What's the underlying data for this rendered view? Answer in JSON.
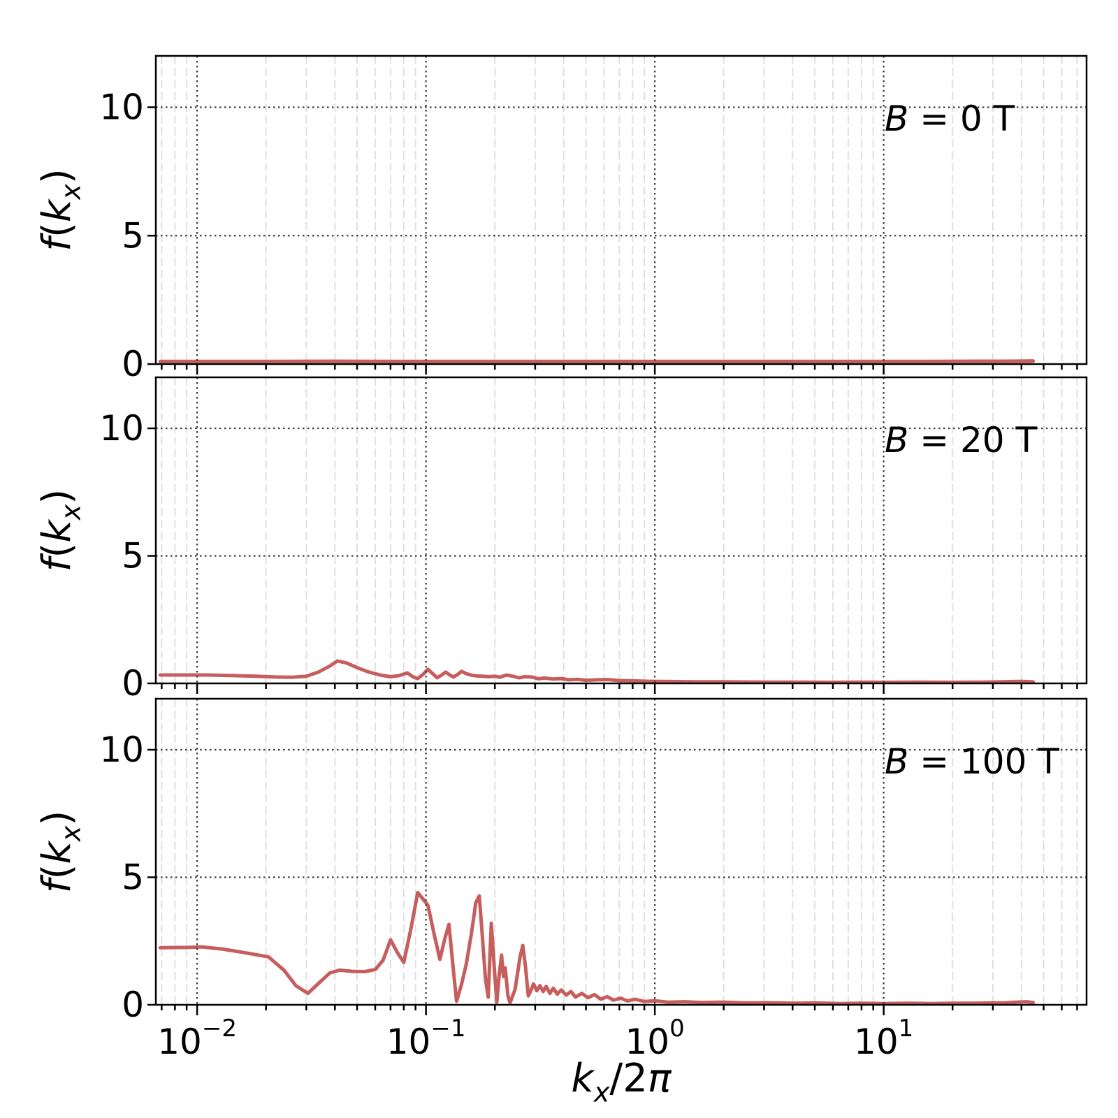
{
  "figure": {
    "background": "#ffffff",
    "line_color": "#c75e5e",
    "grid_major_color": "#3a3a3a",
    "grid_minor_color": "#e0e0e0",
    "axis_color": "#000000",
    "line_width": 5
  },
  "axes": {
    "x_scale": "log",
    "xlim": [
      0.0066,
      77
    ],
    "ylim": [
      0,
      12
    ],
    "xlabel": "k_x/2pi",
    "ylabel": "f(k_x)",
    "xlabel_runs": [
      {
        "t": "k",
        "i": 1
      },
      {
        "t": "x",
        "i": 1,
        "sub": 1
      },
      {
        "t": "/2"
      },
      {
        "t": "π",
        "i": 1
      }
    ],
    "ylabel_runs": [
      {
        "t": "f",
        "i": 1
      },
      {
        "t": "("
      },
      {
        "t": "k",
        "i": 1
      },
      {
        "t": "x",
        "i": 1,
        "sub": 1
      },
      {
        "t": ")"
      }
    ],
    "x_major_ticks": [
      0.01,
      0.1,
      1,
      10
    ],
    "x_tick_labels": [
      {
        "x": 0.01,
        "runs": [
          {
            "t": "10"
          },
          {
            "t": "−2",
            "sup": 1
          }
        ]
      },
      {
        "x": 0.1,
        "runs": [
          {
            "t": "10"
          },
          {
            "t": "−1",
            "sup": 1
          }
        ]
      },
      {
        "x": 1,
        "runs": [
          {
            "t": "10"
          },
          {
            "t": "0",
            "sup": 1
          }
        ]
      },
      {
        "x": 10,
        "runs": [
          {
            "t": "10"
          },
          {
            "t": "1",
            "sup": 1
          }
        ]
      }
    ],
    "y_ticks": [
      {
        "v": 0,
        "label": "0"
      },
      {
        "v": 5,
        "label": "5"
      },
      {
        "v": 10,
        "label": "10"
      }
    ],
    "grid": {
      "major_style": "dotted",
      "minor_style": "dashed-light",
      "y_major_gridlines": [
        5,
        10
      ]
    }
  },
  "chart_data": [
    {
      "type": "line",
      "annotation": "B = 0 T",
      "annotation_runs": [
        {
          "t": "B",
          "i": 1
        },
        {
          "t": " = 0 T"
        }
      ],
      "x": [
        0.0069,
        0.01,
        0.02,
        0.04,
        0.08,
        0.15,
        0.3,
        0.6,
        1,
        2,
        4,
        8,
        15,
        25,
        35,
        45
      ],
      "y": [
        0.1,
        0.1,
        0.1,
        0.11,
        0.1,
        0.1,
        0.1,
        0.1,
        0.1,
        0.1,
        0.1,
        0.1,
        0.1,
        0.11,
        0.11,
        0.12
      ]
    },
    {
      "type": "line",
      "annotation": "B = 20 T",
      "annotation_runs": [
        {
          "t": "B",
          "i": 1
        },
        {
          "t": " = 20 T"
        }
      ],
      "x": [
        0.0069,
        0.009,
        0.011,
        0.014,
        0.018,
        0.022,
        0.026,
        0.03,
        0.034,
        0.038,
        0.041,
        0.045,
        0.05,
        0.056,
        0.063,
        0.07,
        0.076,
        0.083,
        0.088,
        0.092,
        0.097,
        0.102,
        0.107,
        0.112,
        0.117,
        0.122,
        0.127,
        0.132,
        0.138,
        0.143,
        0.15,
        0.158,
        0.167,
        0.177,
        0.188,
        0.2,
        0.21,
        0.225,
        0.24,
        0.255,
        0.27,
        0.29,
        0.31,
        0.33,
        0.36,
        0.39,
        0.42,
        0.46,
        0.5,
        0.56,
        0.62,
        0.7,
        0.8,
        0.95,
        1.2,
        1.5,
        2,
        3,
        4,
        6,
        8,
        10,
        14,
        20,
        27,
        33,
        40,
        45
      ],
      "y": [
        0.33,
        0.33,
        0.33,
        0.31,
        0.28,
        0.25,
        0.24,
        0.28,
        0.45,
        0.68,
        0.88,
        0.8,
        0.62,
        0.45,
        0.33,
        0.26,
        0.3,
        0.41,
        0.25,
        0.19,
        0.35,
        0.55,
        0.38,
        0.22,
        0.33,
        0.44,
        0.33,
        0.25,
        0.36,
        0.47,
        0.38,
        0.32,
        0.29,
        0.28,
        0.26,
        0.28,
        0.24,
        0.33,
        0.28,
        0.22,
        0.26,
        0.25,
        0.18,
        0.21,
        0.17,
        0.19,
        0.14,
        0.16,
        0.12,
        0.14,
        0.15,
        0.11,
        0.1,
        0.08,
        0.07,
        0.06,
        0.06,
        0.05,
        0.05,
        0.04,
        0.05,
        0.04,
        0.05,
        0.04,
        0.05,
        0.06,
        0.08,
        0.06
      ]
    },
    {
      "type": "line",
      "annotation": "B = 100 T",
      "annotation_runs": [
        {
          "t": "B",
          "i": 1
        },
        {
          "t": " = 100 T"
        }
      ],
      "x": [
        0.0069,
        0.009,
        0.0105,
        0.013,
        0.016,
        0.0205,
        0.024,
        0.027,
        0.0305,
        0.034,
        0.038,
        0.042,
        0.048,
        0.054,
        0.06,
        0.065,
        0.07,
        0.075,
        0.08,
        0.086,
        0.092,
        0.097,
        0.102,
        0.109,
        0.115,
        0.121,
        0.126,
        0.131,
        0.136,
        0.143,
        0.15,
        0.158,
        0.165,
        0.171,
        0.176,
        0.182,
        0.187,
        0.193,
        0.199,
        0.204,
        0.209,
        0.214,
        0.218,
        0.222,
        0.228,
        0.233,
        0.245,
        0.258,
        0.265,
        0.272,
        0.28,
        0.287,
        0.295,
        0.305,
        0.315,
        0.325,
        0.335,
        0.348,
        0.36,
        0.375,
        0.39,
        0.41,
        0.43,
        0.45,
        0.48,
        0.51,
        0.545,
        0.58,
        0.62,
        0.66,
        0.71,
        0.76,
        0.82,
        0.9,
        1.0,
        1.15,
        1.35,
        1.6,
        2.0,
        2.5,
        3.2,
        4.0,
        5.0,
        6.5,
        8.0,
        10,
        13,
        16,
        20,
        25,
        30,
        34,
        38,
        42,
        45
      ],
      "y": [
        2.24,
        2.25,
        2.27,
        2.18,
        2.05,
        1.88,
        1.35,
        0.75,
        0.45,
        0.85,
        1.25,
        1.36,
        1.31,
        1.3,
        1.38,
        1.75,
        2.55,
        2.05,
        1.66,
        3.0,
        4.4,
        4.15,
        3.9,
        2.7,
        1.78,
        2.6,
        3.15,
        1.6,
        0.14,
        0.8,
        1.6,
        2.8,
        4.0,
        4.27,
        2.8,
        1.0,
        0.3,
        3.2,
        1.4,
        0.1,
        1.2,
        1.95,
        1.1,
        1.45,
        0.35,
        0.08,
        0.6,
        1.9,
        2.33,
        1.5,
        0.35,
        0.55,
        0.82,
        0.55,
        0.75,
        0.52,
        0.72,
        0.45,
        0.65,
        0.42,
        0.58,
        0.38,
        0.52,
        0.3,
        0.45,
        0.28,
        0.4,
        0.22,
        0.32,
        0.18,
        0.26,
        0.15,
        0.22,
        0.13,
        0.16,
        0.1,
        0.12,
        0.09,
        0.1,
        0.07,
        0.08,
        0.06,
        0.07,
        0.05,
        0.06,
        0.05,
        0.06,
        0.05,
        0.06,
        0.06,
        0.07,
        0.08,
        0.1,
        0.12,
        0.09
      ]
    }
  ]
}
